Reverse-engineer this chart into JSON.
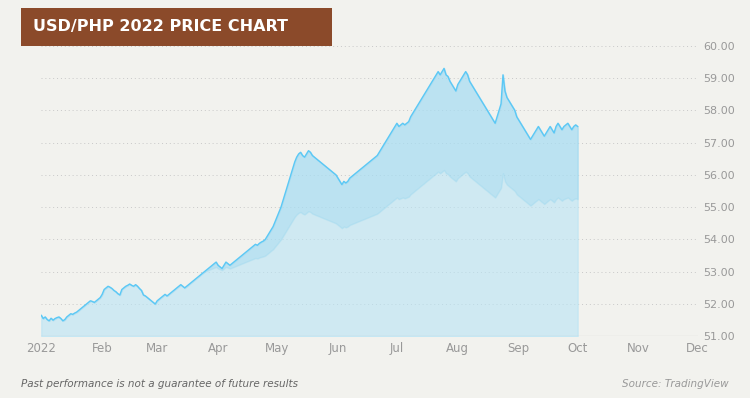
{
  "title": "USD/PHP 2022 PRICE CHART",
  "title_bg_color": "#8B4A2A",
  "title_text_color": "#FFFFFF",
  "line_color": "#5BC8F5",
  "fill_color_top": "#A8DCEF",
  "fill_color_bottom": "#DDEEF5",
  "bg_color": "#F2F2EE",
  "plot_bg_color": "#F2F2EE",
  "grid_color": "#C8C8C8",
  "axis_label_color": "#999999",
  "footer_left": "Past performance is not a guarantee of future results",
  "footer_right": "Source: TradingView",
  "ylim": [
    51.0,
    60.0
  ],
  "yticks": [
    51.0,
    52.0,
    53.0,
    54.0,
    55.0,
    56.0,
    57.0,
    58.0,
    59.0,
    60.0
  ],
  "xtick_labels": [
    "2022",
    "Feb",
    "Mar",
    "Apr",
    "May",
    "Jun",
    "Jul",
    "Aug",
    "Sep",
    "Oct",
    "Nov",
    "Dec"
  ],
  "xtick_positions": [
    0,
    31,
    59,
    90,
    120,
    151,
    181,
    212,
    243,
    273,
    304,
    334
  ],
  "prices": [
    51.65,
    51.55,
    51.6,
    51.52,
    51.48,
    51.56,
    51.5,
    51.55,
    51.58,
    51.6,
    51.55,
    51.48,
    51.52,
    51.6,
    51.65,
    51.7,
    51.68,
    51.72,
    51.75,
    51.8,
    51.85,
    51.9,
    51.95,
    52.0,
    52.05,
    52.1,
    52.08,
    52.05,
    52.1,
    52.15,
    52.2,
    52.3,
    52.45,
    52.5,
    52.55,
    52.52,
    52.48,
    52.42,
    52.38,
    52.32,
    52.28,
    52.45,
    52.5,
    52.55,
    52.58,
    52.62,
    52.58,
    52.55,
    52.6,
    52.55,
    52.48,
    52.42,
    52.28,
    52.25,
    52.2,
    52.15,
    52.1,
    52.05,
    52.0,
    52.1,
    52.15,
    52.2,
    52.25,
    52.3,
    52.25,
    52.3,
    52.35,
    52.4,
    52.45,
    52.5,
    52.55,
    52.6,
    52.55,
    52.5,
    52.55,
    52.6,
    52.65,
    52.7,
    52.75,
    52.8,
    52.85,
    52.9,
    52.95,
    53.0,
    53.05,
    53.1,
    53.15,
    53.2,
    53.25,
    53.3,
    53.2,
    53.15,
    53.1,
    53.2,
    53.3,
    53.25,
    53.2,
    53.25,
    53.3,
    53.35,
    53.4,
    53.45,
    53.5,
    53.55,
    53.6,
    53.65,
    53.7,
    53.75,
    53.8,
    53.85,
    53.82,
    53.88,
    53.92,
    53.95,
    54.0,
    54.1,
    54.2,
    54.3,
    54.4,
    54.55,
    54.7,
    54.85,
    55.0,
    55.2,
    55.4,
    55.6,
    55.8,
    56.0,
    56.2,
    56.4,
    56.55,
    56.65,
    56.7,
    56.6,
    56.55,
    56.65,
    56.75,
    56.7,
    56.6,
    56.55,
    56.5,
    56.45,
    56.4,
    56.35,
    56.3,
    56.25,
    56.2,
    56.15,
    56.1,
    56.05,
    56.0,
    55.9,
    55.8,
    55.7,
    55.8,
    55.75,
    55.8,
    55.9,
    55.95,
    56.0,
    56.05,
    56.1,
    56.15,
    56.2,
    56.25,
    56.3,
    56.35,
    56.4,
    56.45,
    56.5,
    56.55,
    56.6,
    56.7,
    56.8,
    56.9,
    57.0,
    57.1,
    57.2,
    57.3,
    57.4,
    57.5,
    57.6,
    57.5,
    57.55,
    57.6,
    57.55,
    57.6,
    57.65,
    57.8,
    57.9,
    58.0,
    58.1,
    58.2,
    58.3,
    58.4,
    58.5,
    58.6,
    58.7,
    58.8,
    58.9,
    59.0,
    59.1,
    59.2,
    59.1,
    59.2,
    59.3,
    59.1,
    59.05,
    58.9,
    58.8,
    58.7,
    58.6,
    58.8,
    58.9,
    59.0,
    59.1,
    59.2,
    59.1,
    58.9,
    58.8,
    58.7,
    58.6,
    58.5,
    58.4,
    58.3,
    58.2,
    58.1,
    58.0,
    57.9,
    57.8,
    57.7,
    57.6,
    57.8,
    58.0,
    58.2,
    59.1,
    58.6,
    58.4,
    58.3,
    58.2,
    58.1,
    58.0,
    57.8,
    57.7,
    57.6,
    57.5,
    57.4,
    57.3,
    57.2,
    57.1,
    57.2,
    57.3,
    57.4,
    57.5,
    57.4,
    57.3,
    57.2,
    57.3,
    57.4,
    57.5,
    57.4,
    57.3,
    57.5,
    57.6,
    57.5,
    57.4,
    57.5,
    57.55,
    57.6,
    57.5,
    57.4,
    57.5,
    57.55,
    57.5
  ]
}
